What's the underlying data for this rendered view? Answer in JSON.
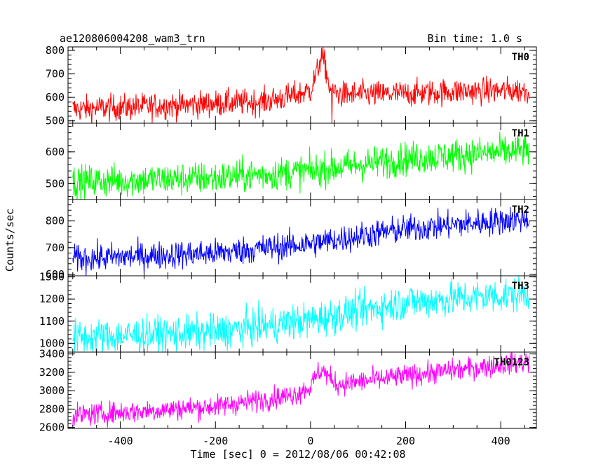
{
  "chart_data": {
    "type": "line",
    "title_left": "ae120806004208_wam3_trn",
    "title_right": "Bin time: 1.0 s",
    "xlabel": "Time [sec] 0 = 2012/08/06 00:42:08",
    "ylabel": "Counts/sec",
    "xlim": [
      -510,
      475
    ],
    "x_ticks": [
      -400,
      -200,
      0,
      200,
      400
    ],
    "bin_time": 1.0,
    "panels": [
      {
        "name": "TH0",
        "color": "#ff0000",
        "ylim": [
          490,
          815
        ],
        "y_ticks": [
          500,
          600,
          700,
          800
        ],
        "baseline_points": [
          [
            -500,
            550
          ],
          [
            -300,
            565
          ],
          [
            -100,
            582
          ],
          [
            -40,
            605
          ],
          [
            0,
            630
          ],
          [
            15,
            715
          ],
          [
            22,
            775
          ],
          [
            30,
            745
          ],
          [
            40,
            640
          ],
          [
            60,
            612
          ],
          [
            200,
            615
          ],
          [
            300,
            625
          ],
          [
            460,
            630
          ]
        ],
        "noise_amplitude": 28,
        "dip": [
          45,
          490
        ]
      },
      {
        "name": "TH1",
        "color": "#00ff00",
        "ylim": [
          450,
          690
        ],
        "y_ticks": [
          500,
          600
        ],
        "baseline_points": [
          [
            -500,
            505
          ],
          [
            -200,
            518
          ],
          [
            0,
            540
          ],
          [
            200,
            578
          ],
          [
            460,
            605
          ]
        ],
        "noise_amplitude": 26
      },
      {
        "name": "TH2",
        "color": "#0000ff",
        "ylim": [
          595,
          880
        ],
        "y_ticks": [
          600,
          700,
          800
        ],
        "baseline_points": [
          [
            -500,
            658
          ],
          [
            -200,
            680
          ],
          [
            0,
            715
          ],
          [
            200,
            770
          ],
          [
            460,
            810
          ]
        ],
        "noise_amplitude": 26
      },
      {
        "name": "TH3",
        "color": "#00ffff",
        "ylim": [
          960,
          1305
        ],
        "y_ticks": [
          1000,
          1100,
          1200,
          1300
        ],
        "baseline_points": [
          [
            -500,
            1025
          ],
          [
            -200,
            1050
          ],
          [
            0,
            1105
          ],
          [
            200,
            1185
          ],
          [
            460,
            1225
          ]
        ],
        "noise_amplitude": 40
      },
      {
        "name": "TH0123",
        "color": "#ff00ff",
        "ylim": [
          2590,
          3420
        ],
        "y_ticks": [
          2600,
          2800,
          3000,
          3200,
          3400
        ],
        "baseline_points": [
          [
            -500,
            2730
          ],
          [
            -200,
            2830
          ],
          [
            -40,
            2950
          ],
          [
            0,
            3040
          ],
          [
            15,
            3190
          ],
          [
            25,
            3230
          ],
          [
            45,
            3110
          ],
          [
            60,
            3070
          ],
          [
            200,
            3160
          ],
          [
            460,
            3320
          ]
        ],
        "noise_amplitude": 60
      }
    ]
  }
}
